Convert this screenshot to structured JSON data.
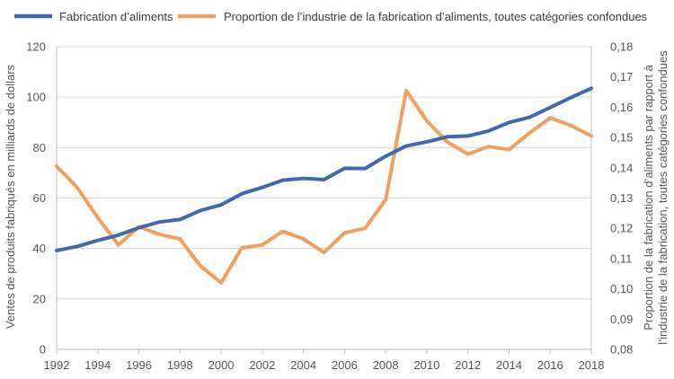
{
  "chart_data": {
    "type": "line",
    "title": "",
    "x": [
      1992,
      1993,
      1994,
      1995,
      1996,
      1997,
      1998,
      1999,
      2000,
      2001,
      2002,
      2003,
      2004,
      2005,
      2006,
      2007,
      2008,
      2009,
      2010,
      2011,
      2012,
      2013,
      2014,
      2015,
      2016,
      2017,
      2018
    ],
    "x_ticks": [
      "1992",
      "1994",
      "1996",
      "1998",
      "2000",
      "2002",
      "2004",
      "2006",
      "2008",
      "2010",
      "2012",
      "2014",
      "2016",
      "2018"
    ],
    "xlim": [
      1992,
      2018
    ],
    "y_left": {
      "label": "Ventes de produits fabriqués en milliards de dollars",
      "ylim": [
        0,
        120
      ],
      "ticks": [
        "0",
        "20",
        "40",
        "60",
        "80",
        "100",
        "120"
      ]
    },
    "y_right": {
      "label_line1": "Proportion de la fabrication d’aliments par rapport à",
      "label_line2": "l’industrie de la fabrication, toutes catégories confondues",
      "ylim": [
        0.08,
        0.18
      ],
      "ticks": [
        "0,08",
        "0,09",
        "0,10",
        "0,11",
        "0,12",
        "0,13",
        "0,14",
        "0,15",
        "0,16",
        "0,17",
        "0,18"
      ]
    },
    "series": [
      {
        "name": "Fabrication d’aliments",
        "axis": "left",
        "color": "#4169AC",
        "values": [
          39.2,
          40.8,
          43.2,
          45.3,
          48.2,
          50.5,
          51.5,
          55.1,
          57.3,
          61.7,
          64.2,
          67.1,
          67.8,
          67.3,
          71.8,
          71.7,
          76.6,
          80.6,
          82.3,
          84.3,
          84.6,
          86.6,
          90.0,
          92.0,
          95.9,
          99.8,
          103.5
        ]
      },
      {
        "name": "Proportion de l’industrie de la fabrication d’aliments, toutes catégories confondues",
        "axis": "right",
        "color": "#F0A060",
        "values": [
          0.1405,
          0.1335,
          0.1235,
          0.1145,
          0.1205,
          0.118,
          0.1165,
          0.1075,
          0.102,
          0.1135,
          0.1145,
          0.119,
          0.1165,
          0.112,
          0.1185,
          0.12,
          0.1295,
          0.1655,
          0.1555,
          0.1485,
          0.1445,
          0.147,
          0.146,
          0.1515,
          0.1565,
          0.154,
          0.1505
        ]
      }
    ],
    "grid": "horizontal",
    "legend": "top"
  }
}
